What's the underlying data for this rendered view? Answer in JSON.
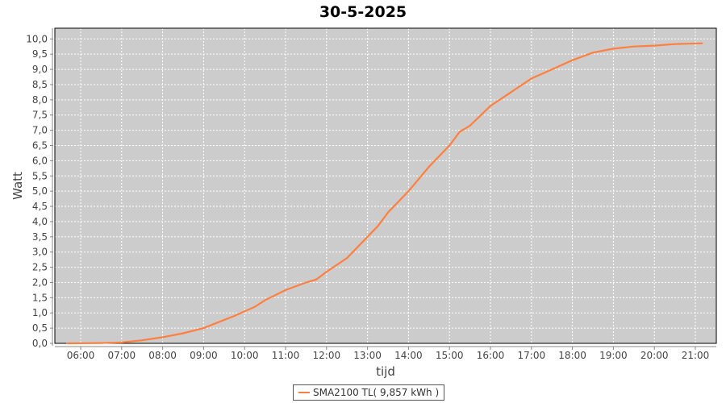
{
  "chart_data": {
    "type": "line",
    "title": "30-5-2025",
    "xlabel": "tijd",
    "ylabel": "Watt",
    "xlim": [
      "05:20",
      "21:30"
    ],
    "ylim": [
      0,
      10.2
    ],
    "x_ticks": [
      "06:00",
      "07:00",
      "08:00",
      "09:00",
      "10:00",
      "11:00",
      "12:00",
      "13:00",
      "14:00",
      "15:00",
      "16:00",
      "17:00",
      "18:00",
      "19:00",
      "20:00",
      "21:00"
    ],
    "y_ticks": [
      "0,0",
      "0,5",
      "1,0",
      "1,5",
      "2,0",
      "2,5",
      "3,0",
      "3,5",
      "4,0",
      "4,5",
      "5,0",
      "5,5",
      "6,0",
      "6,5",
      "7,0",
      "7,5",
      "8,0",
      "8,5",
      "9,0",
      "9,5",
      "10,0"
    ],
    "grid": true,
    "background": "#cccccc",
    "legend_position": "bottom",
    "series": [
      {
        "name": "SMA2100 TL( 9,857 kWh )",
        "color": "#ff7f3f",
        "x": [
          "05:40",
          "06:30",
          "07:00",
          "07:30",
          "08:00",
          "08:30",
          "09:00",
          "09:20",
          "09:45",
          "10:00",
          "10:15",
          "10:30",
          "11:00",
          "11:30",
          "11:45",
          "12:00",
          "12:30",
          "13:00",
          "13:15",
          "13:30",
          "14:00",
          "14:30",
          "15:00",
          "15:15",
          "15:30",
          "16:00",
          "16:30",
          "17:00",
          "17:30",
          "18:00",
          "18:30",
          "19:00",
          "19:30",
          "20:00",
          "20:30",
          "21:10"
        ],
        "y": [
          0,
          0.01,
          0.03,
          0.1,
          0.2,
          0.33,
          0.5,
          0.68,
          0.9,
          1.05,
          1.2,
          1.42,
          1.75,
          2.0,
          2.1,
          2.35,
          2.8,
          3.5,
          3.85,
          4.3,
          5.0,
          5.8,
          6.5,
          6.95,
          7.15,
          7.8,
          8.25,
          8.7,
          9.0,
          9.3,
          9.55,
          9.68,
          9.75,
          9.78,
          9.83,
          9.857
        ]
      }
    ]
  }
}
